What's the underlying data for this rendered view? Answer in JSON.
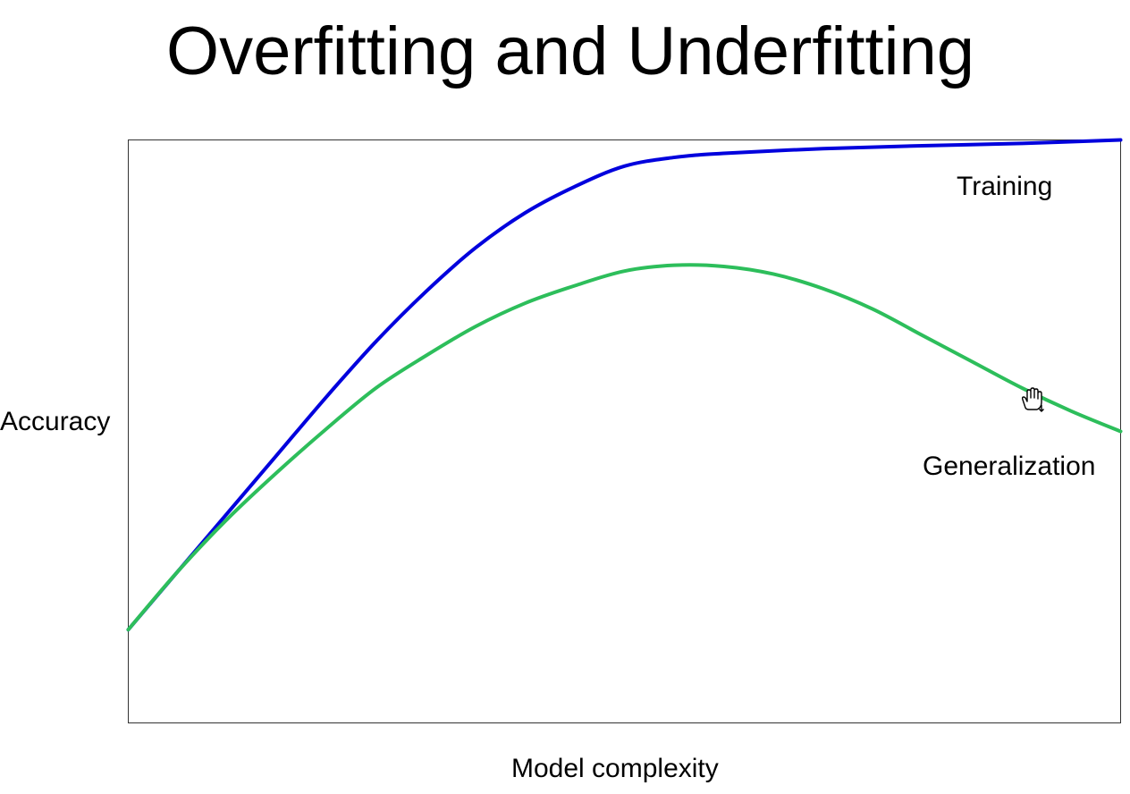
{
  "title": "Overfitting and Underfitting",
  "chart_data": {
    "type": "line",
    "xlabel": "Model complexity",
    "ylabel": "Accuracy",
    "xlim": [
      0,
      1
    ],
    "ylim": [
      0,
      1
    ],
    "grid": false,
    "legend": "none",
    "series": [
      {
        "name": "Training",
        "color": "#0000DD",
        "x": [
          0,
          0.05,
          0.1,
          0.15,
          0.2,
          0.25,
          0.3,
          0.35,
          0.4,
          0.45,
          0.5,
          0.55,
          0.6,
          0.7,
          0.8,
          0.9,
          1.0
        ],
        "y": [
          0.16,
          0.26,
          0.36,
          0.46,
          0.56,
          0.655,
          0.74,
          0.815,
          0.875,
          0.92,
          0.955,
          0.97,
          0.977,
          0.985,
          0.99,
          0.994,
          1.0
        ]
      },
      {
        "name": "Generalization",
        "color": "#2DBE5B",
        "x": [
          0,
          0.05,
          0.1,
          0.15,
          0.2,
          0.25,
          0.3,
          0.35,
          0.4,
          0.45,
          0.5,
          0.55,
          0.6,
          0.65,
          0.7,
          0.75,
          0.8,
          0.85,
          0.9,
          0.95,
          1.0
        ],
        "y": [
          0.16,
          0.26,
          0.35,
          0.43,
          0.505,
          0.575,
          0.63,
          0.68,
          0.72,
          0.75,
          0.775,
          0.785,
          0.783,
          0.77,
          0.745,
          0.71,
          0.665,
          0.62,
          0.575,
          0.535,
          0.5
        ]
      }
    ]
  }
}
